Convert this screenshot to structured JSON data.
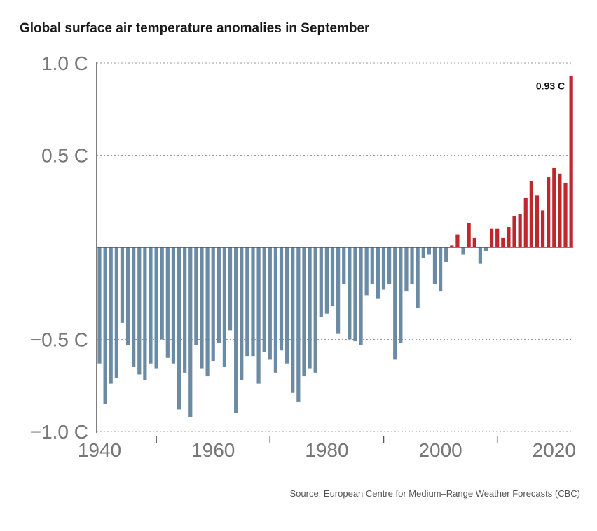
{
  "chart_data": {
    "type": "bar",
    "title": "Global surface air temperature anomalies in September",
    "source": "Source: European Centre for Medium–Range Weather Forecasts (CBC)",
    "x": [
      1940,
      1941,
      1942,
      1943,
      1944,
      1945,
      1946,
      1947,
      1948,
      1949,
      1950,
      1951,
      1952,
      1953,
      1954,
      1955,
      1956,
      1957,
      1958,
      1959,
      1960,
      1961,
      1962,
      1963,
      1964,
      1965,
      1966,
      1967,
      1968,
      1969,
      1970,
      1971,
      1972,
      1973,
      1974,
      1975,
      1976,
      1977,
      1978,
      1979,
      1980,
      1981,
      1982,
      1983,
      1984,
      1985,
      1986,
      1987,
      1988,
      1989,
      1990,
      1991,
      1992,
      1993,
      1994,
      1995,
      1996,
      1997,
      1998,
      1999,
      2000,
      2001,
      2002,
      2003,
      2004,
      2005,
      2006,
      2007,
      2008,
      2009,
      2010,
      2011,
      2012,
      2013,
      2014,
      2015,
      2016,
      2017,
      2018,
      2019,
      2020,
      2021,
      2022,
      2023
    ],
    "values": [
      -0.63,
      -0.85,
      -0.74,
      -0.71,
      -0.41,
      -0.53,
      -0.65,
      -0.69,
      -0.72,
      -0.63,
      -0.66,
      -0.5,
      -0.6,
      -0.63,
      -0.88,
      -0.68,
      -0.92,
      -0.53,
      -0.66,
      -0.7,
      -0.62,
      -0.52,
      -0.65,
      -0.45,
      -0.9,
      -0.72,
      -0.59,
      -0.59,
      -0.74,
      -0.57,
      -0.61,
      -0.68,
      -0.56,
      -0.63,
      -0.79,
      -0.84,
      -0.7,
      -0.66,
      -0.68,
      -0.38,
      -0.36,
      -0.32,
      -0.47,
      -0.2,
      -0.5,
      -0.51,
      -0.53,
      -0.26,
      -0.2,
      -0.28,
      -0.23,
      -0.2,
      -0.61,
      -0.52,
      -0.24,
      -0.2,
      -0.33,
      -0.06,
      -0.04,
      -0.2,
      -0.24,
      -0.08,
      0.01,
      0.07,
      -0.04,
      0.13,
      0.05,
      -0.09,
      -0.02,
      0.1,
      0.1,
      0.05,
      0.11,
      0.17,
      0.18,
      0.27,
      0.36,
      0.28,
      0.2,
      0.38,
      0.43,
      0.4,
      0.35,
      0.93
    ],
    "negative_color": "#6b8aa4",
    "positive_color": "#c0272d",
    "ylim": [
      -1.0,
      1.0
    ],
    "xlim": [
      1940,
      2023
    ],
    "y_ticks": [
      {
        "value": 1.0,
        "label": "1.0 C"
      },
      {
        "value": 0.5,
        "label": "0.5 C"
      },
      {
        "value": -0.5,
        "label": "−0.5 C"
      },
      {
        "value": -1.0,
        "label": "−1.0 C"
      }
    ],
    "x_ticks": [
      {
        "value": 1940,
        "label": "1940"
      },
      {
        "value": 1960,
        "label": "1960"
      },
      {
        "value": 1980,
        "label": "1980"
      },
      {
        "value": 2000,
        "label": "2000"
      },
      {
        "value": 2020,
        "label": "2020"
      }
    ],
    "x_minor_ticks": [
      1950,
      1970,
      1990,
      2010
    ],
    "annotations": [
      {
        "x": 2023,
        "value": 0.93,
        "text": "0.93 C"
      }
    ],
    "grid": true
  }
}
